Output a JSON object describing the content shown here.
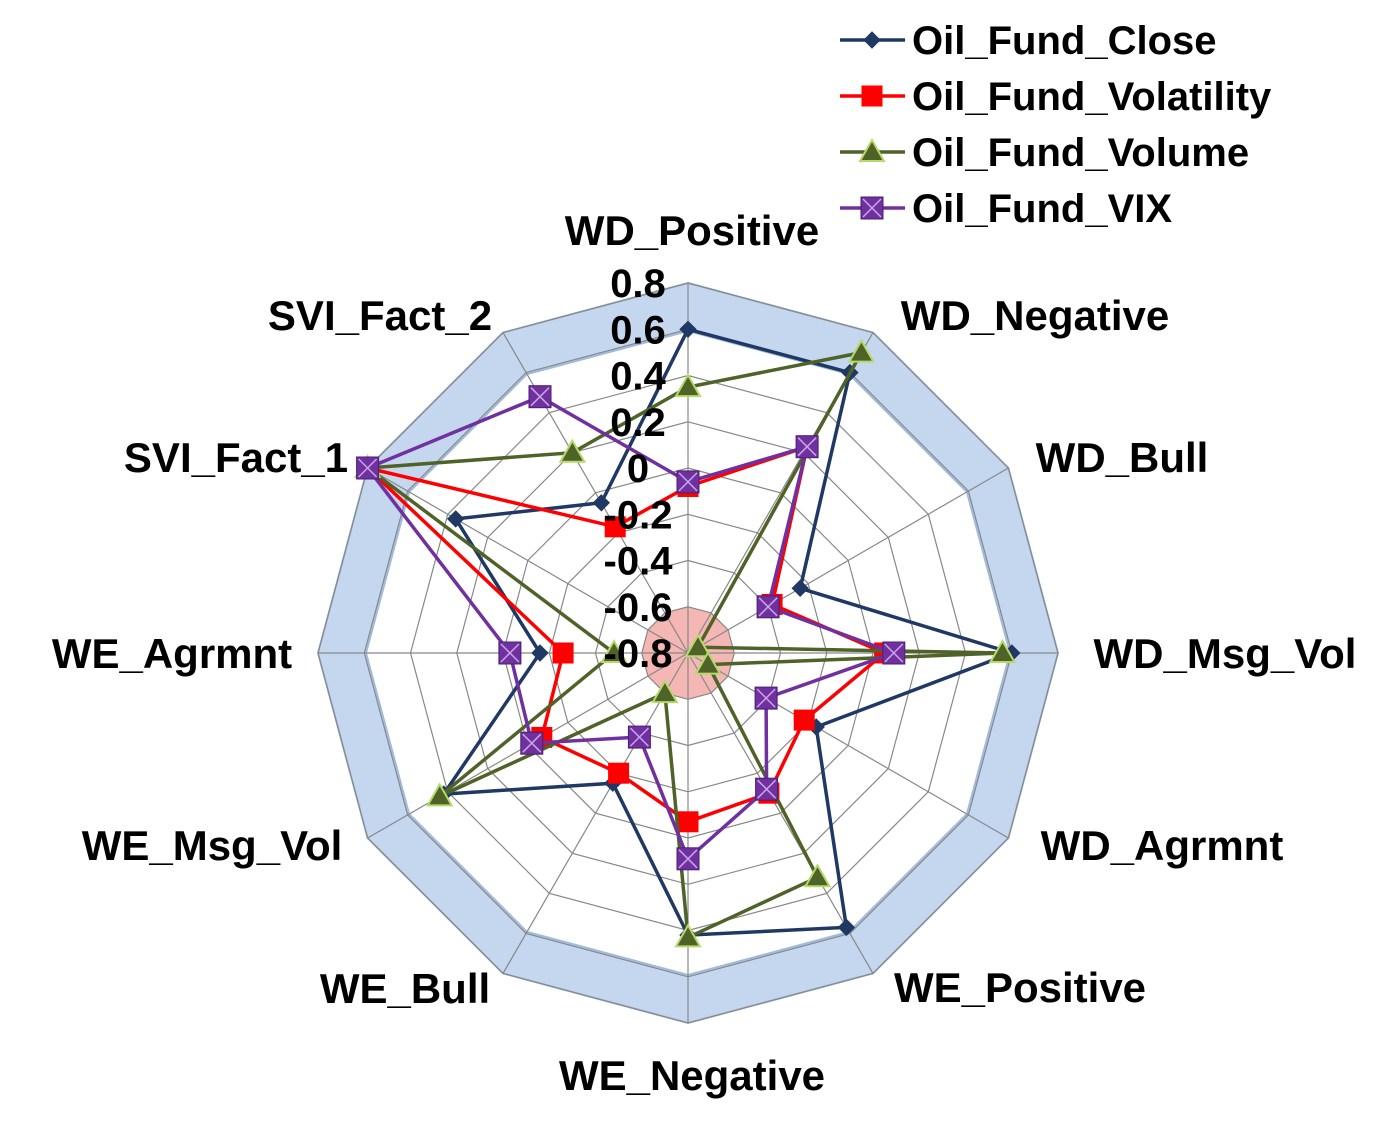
{
  "chart_data": {
    "type": "radar",
    "title": "",
    "axes": [
      "WD_Positive",
      "WD_Negative",
      "WD_Bull",
      "WD_Msg_Vol",
      "WD_Agrmnt",
      "WE_Positive",
      "WE_Negative",
      "WE_Bull",
      "WE_Msg_Vol",
      "WE_Agrmnt",
      "SVI_Fact_1",
      "SVI_Fact_2"
    ],
    "ticks": [
      "0.8",
      "0.6",
      "0.4",
      "0.2",
      "0",
      "-0.2",
      "-0.4",
      "-0.6",
      "-0.8"
    ],
    "rlim": [
      -0.8,
      0.8
    ],
    "grid": true,
    "legend_position": "top-right",
    "series": [
      {
        "name": "Oil_Fund_Close",
        "color": "#1f3864",
        "marker": "diamond",
        "values": [
          0.6,
          0.6,
          -0.24,
          0.6,
          -0.16,
          0.57,
          0.42,
          -0.15,
          0.42,
          -0.16,
          0.36,
          -0.05
        ]
      },
      {
        "name": "Oil_Fund_Volatility",
        "color": "#ff0000",
        "marker": "square",
        "values": [
          -0.08,
          0.23,
          -0.38,
          0.05,
          -0.22,
          -0.1,
          -0.07,
          -0.2,
          -0.07,
          -0.26,
          0.8,
          -0.17
        ]
      },
      {
        "name": "Oil_Fund_Volume",
        "color": "#4f6228",
        "marker": "triangle",
        "values": [
          0.35,
          0.7,
          -0.75,
          0.56,
          -0.7,
          0.32,
          0.43,
          -0.6,
          0.44,
          -0.48,
          0.8,
          0.2
        ]
      },
      {
        "name": "Oil_Fund_VIX",
        "color": "#7030a0",
        "marker": "square-x",
        "values": [
          -0.06,
          0.23,
          -0.4,
          0.09,
          -0.41,
          -0.12,
          0.09,
          -0.38,
          -0.02,
          -0.03,
          0.8,
          0.48
        ]
      }
    ]
  },
  "colors": {
    "outer_band": "#c5d7ef",
    "outer_band_edge": "#9fbbe0",
    "inner_fill": "#f5b7b4",
    "grid_line": "#888888"
  }
}
